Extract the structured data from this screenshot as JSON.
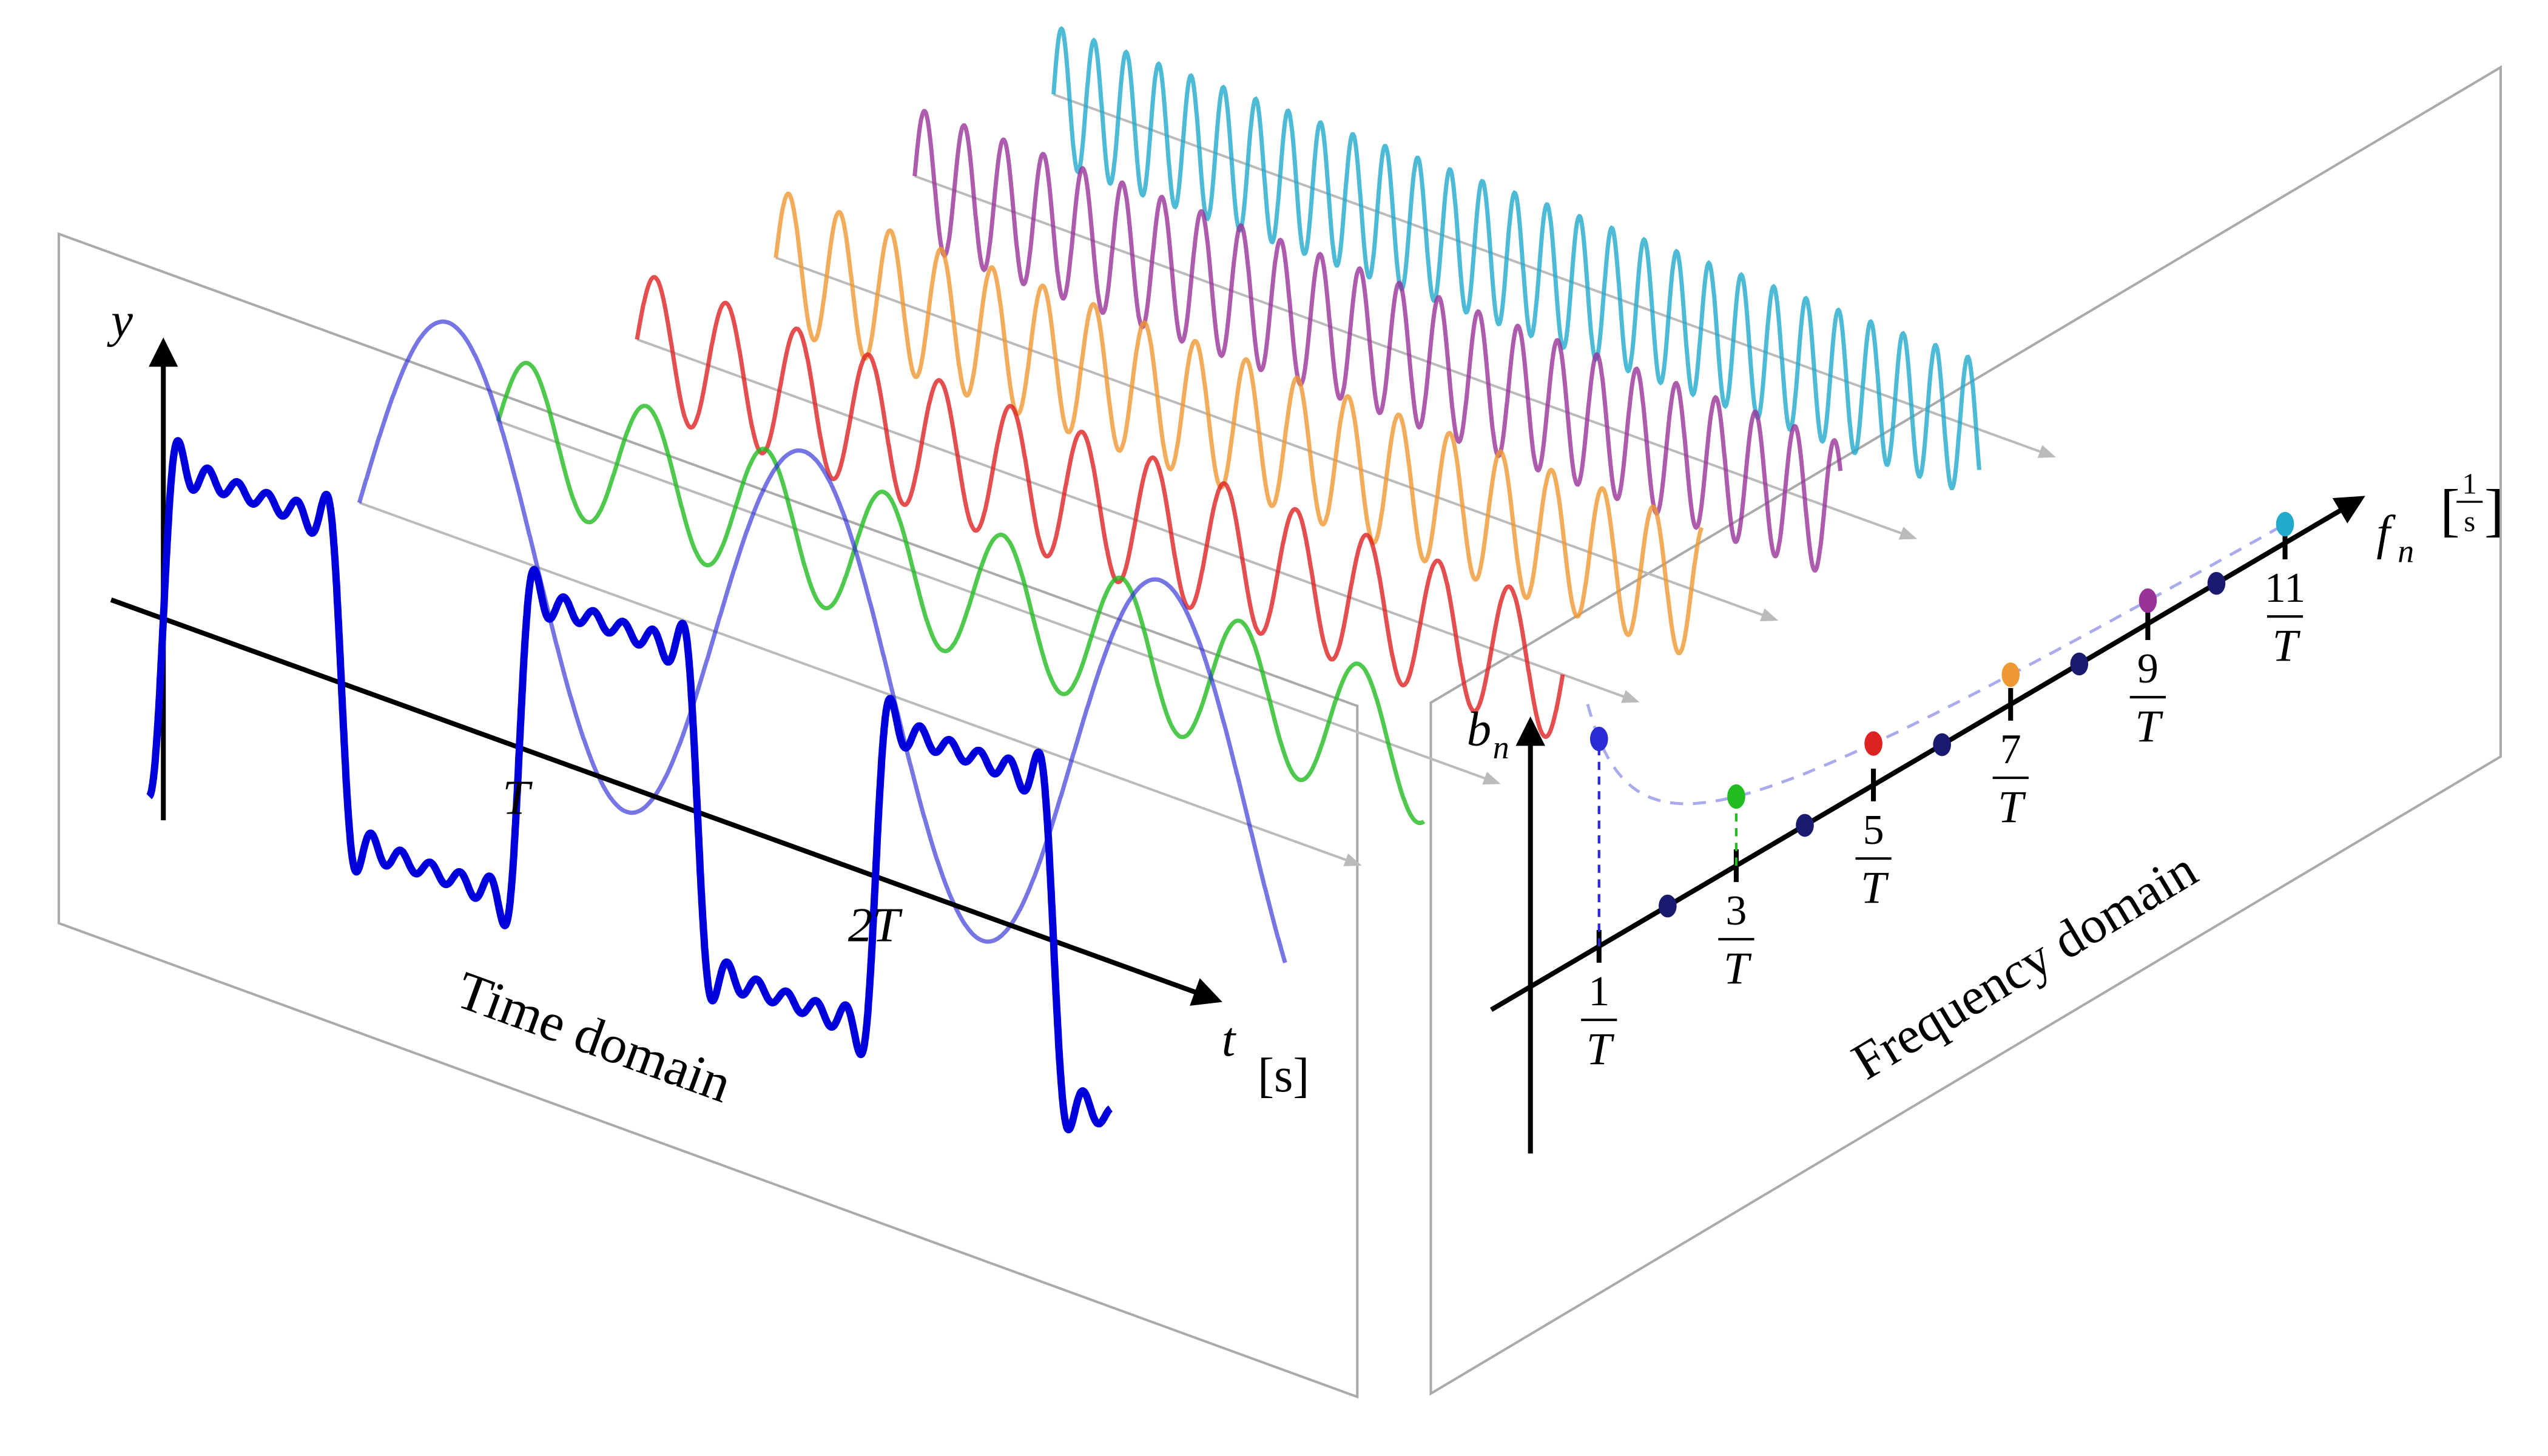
{
  "time_domain": {
    "title": "Time domain",
    "y_label": "y",
    "x_label": "t",
    "x_unit": "[s]",
    "ticks": [
      "T",
      "2T"
    ]
  },
  "frequency_domain": {
    "title": "Frequency domain",
    "y_label": "b",
    "y_label_sub": "n",
    "x_label": "f",
    "x_label_sub": "n",
    "x_unit_open": "[",
    "x_unit_num": "1",
    "x_unit_den": "s",
    "x_unit_close": "]",
    "ticks": [
      {
        "num": "1",
        "den": "T"
      },
      {
        "num": "3",
        "den": "T"
      },
      {
        "num": "5",
        "den": "T"
      },
      {
        "num": "7",
        "den": "T"
      },
      {
        "num": "9",
        "den": "T"
      },
      {
        "num": "11",
        "den": "T"
      }
    ]
  }
}
